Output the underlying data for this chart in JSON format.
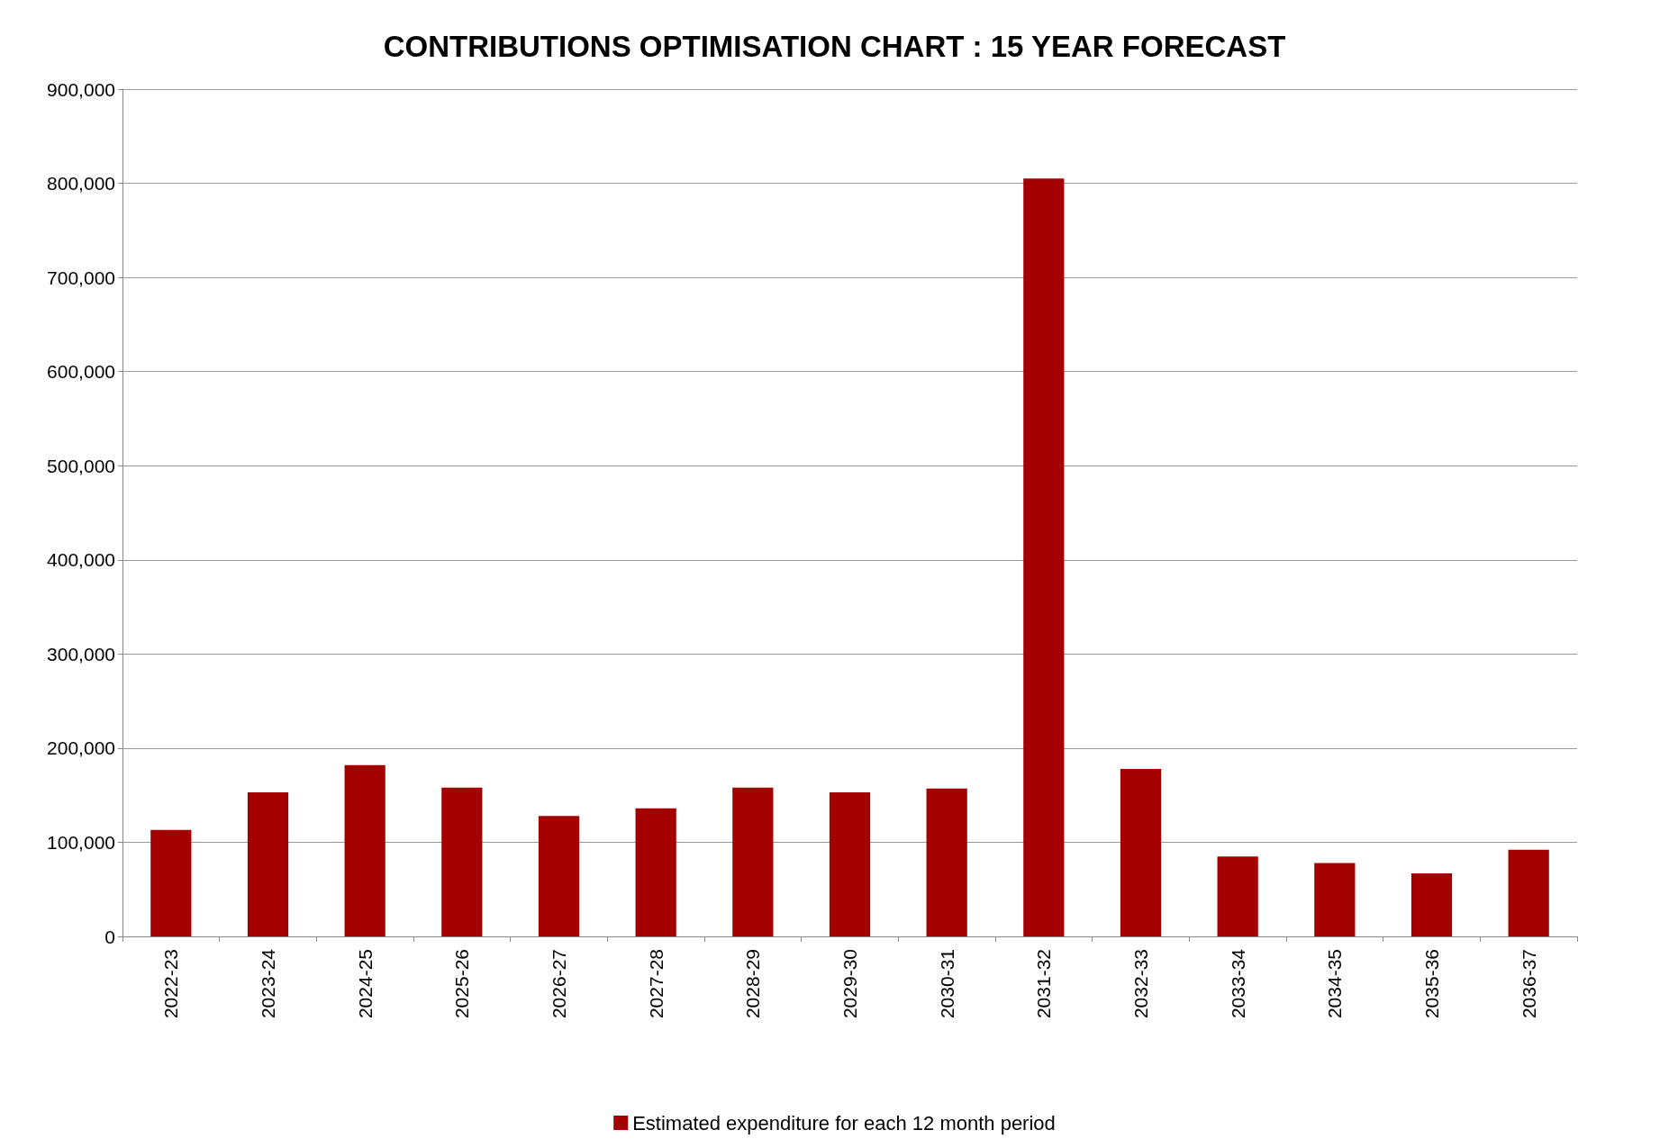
{
  "chart_data": {
    "type": "bar",
    "title": "CONTRIBUTIONS OPTIMISATION CHART : 15 YEAR FORECAST",
    "categories": [
      "2022-23",
      "2023-24",
      "2024-25",
      "2025-26",
      "2026-27",
      "2027-28",
      "2028-29",
      "2029-30",
      "2030-31",
      "2031-32",
      "2032-33",
      "2033-34",
      "2034-35",
      "2035-36",
      "2036-37"
    ],
    "series": [
      {
        "name": "Estimated expenditure for each 12 month period",
        "color": "#a50000",
        "values": [
          113000,
          153000,
          182000,
          158000,
          128000,
          136000,
          158000,
          153000,
          157000,
          805000,
          178000,
          85000,
          78000,
          67000,
          92000
        ]
      }
    ],
    "ylim": [
      0,
      900000
    ],
    "yticks": [
      0,
      {
        "value": 100000,
        "label": "100,000"
      },
      {
        "value": 200000,
        "label": "200,000"
      },
      {
        "value": 300000,
        "label": "300,000"
      },
      {
        "value": 400000,
        "label": "400,000"
      },
      {
        "value": 500000,
        "label": "500,000"
      },
      {
        "value": 600000,
        "label": "600,000"
      },
      {
        "value": 700000,
        "label": "700,000"
      },
      {
        "value": 800000,
        "label": "800,000"
      },
      {
        "value": 900000,
        "label": "900,000"
      }
    ],
    "grid": "y",
    "legend": "bottom"
  }
}
